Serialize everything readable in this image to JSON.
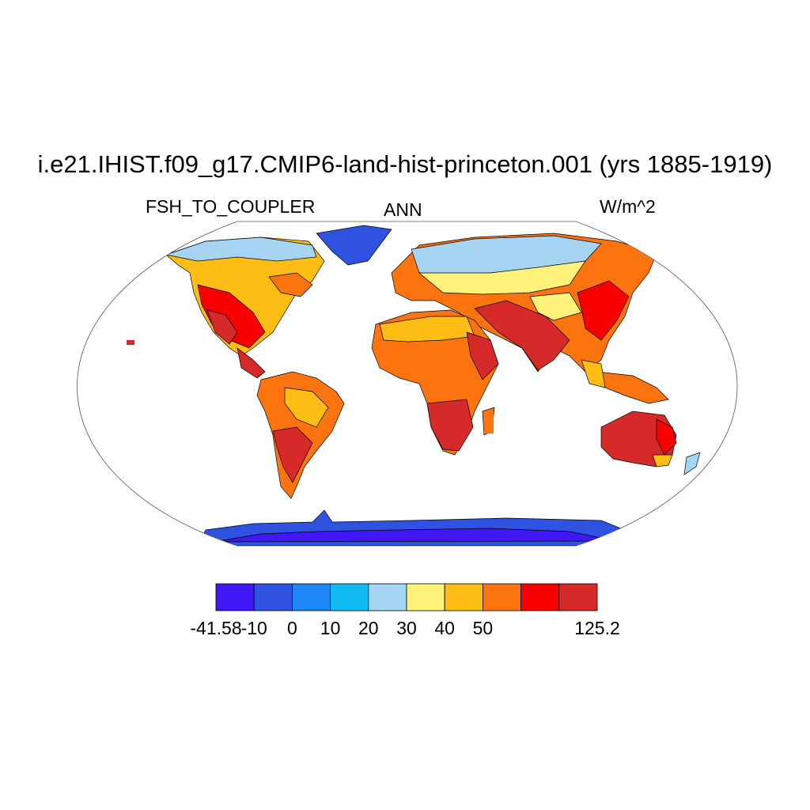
{
  "title": "i.e21.IHIST.f09_g17.CMIP6-land-hist-princeton.001 (yrs 1885-1919)",
  "variable": "FSH_TO_COUPLER",
  "season": "ANN",
  "units": "W/m^2",
  "colorbar": {
    "colors": [
      "#4118f5",
      "#2f52e0",
      "#1e87f5",
      "#11bbf2",
      "#a5d5f2",
      "#fff27a",
      "#fdbd14",
      "#fb7410",
      "#f90000",
      "#d62a2a"
    ],
    "labels": [
      "-41.58",
      "-10",
      "0",
      "10",
      "20",
      "30",
      "40",
      "50",
      "125.2"
    ],
    "label_positions": [
      0,
      1,
      2,
      3,
      4,
      5,
      6,
      7,
      10
    ]
  },
  "map_colors": {
    "land_outline": "#000000",
    "frame": "#555555"
  }
}
